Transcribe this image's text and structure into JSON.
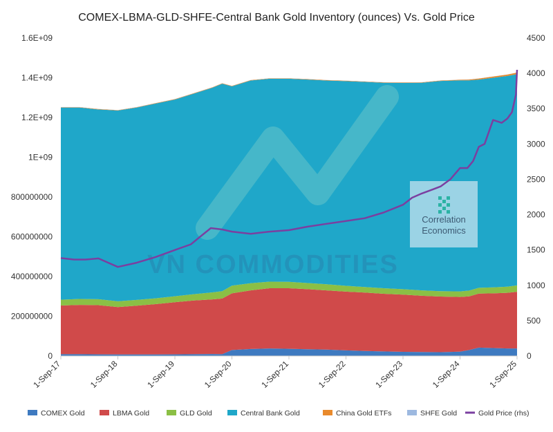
{
  "chart_data": {
    "type": "area",
    "title": "COMEX-LBMA-GLD-SHFE-Central Bank Gold Inventory (ounces) Vs. Gold Price",
    "x_tick_labels": [
      "1-Sep-17",
      "1-Sep-18",
      "1-Sep-19",
      "1-Sep-20",
      "1-Sep-21",
      "1-Sep-22",
      "1-Sep-23",
      "1-Sep-24",
      "1-Sep-25"
    ],
    "x_range_years": [
      2017.67,
      2025.67
    ],
    "y_left": {
      "ticks": [
        "0",
        "200000000",
        "400000000",
        "600000000",
        "800000000",
        "1E+09",
        "1.2E+09",
        "1.4E+09",
        "1.6E+09"
      ],
      "range": [
        0,
        1600000000
      ]
    },
    "y_right": {
      "ticks": [
        "0",
        "500",
        "1000",
        "1500",
        "2000",
        "2500",
        "3000",
        "3500",
        "4000",
        "4500"
      ],
      "range": [
        0,
        4500
      ]
    },
    "x": [
      2017.67,
      2018.0,
      2018.33,
      2018.67,
      2019.0,
      2019.33,
      2019.67,
      2020.0,
      2020.33,
      2020.5,
      2020.67,
      2021.0,
      2021.33,
      2021.67,
      2022.0,
      2022.33,
      2022.67,
      2023.0,
      2023.33,
      2023.67,
      2024.0,
      2024.33,
      2024.67,
      2024.83,
      2025.0,
      2025.25,
      2025.5,
      2025.67
    ],
    "series": [
      {
        "name": "COMEX Gold",
        "color": "#3e7ac0",
        "values": [
          9000000,
          9000000,
          8500000,
          8000000,
          8000000,
          8000000,
          8500000,
          9000000,
          10000000,
          9000000,
          30000000,
          35000000,
          38000000,
          36000000,
          34000000,
          32000000,
          28000000,
          25000000,
          23000000,
          21000000,
          20000000,
          19000000,
          22000000,
          30000000,
          42000000,
          40000000,
          38000000,
          38000000
        ]
      },
      {
        "name": "LBMA Gold",
        "color": "#d04a4a",
        "values": [
          245000000,
          248000000,
          247000000,
          238000000,
          245000000,
          253000000,
          262000000,
          270000000,
          275000000,
          280000000,
          285000000,
          295000000,
          303000000,
          305000000,
          302000000,
          298000000,
          296000000,
          294000000,
          290000000,
          288000000,
          283000000,
          280000000,
          275000000,
          270000000,
          272000000,
          275000000,
          280000000,
          285000000
        ]
      },
      {
        "name": "GLD Gold",
        "color": "#8bbf45",
        "values": [
          29000000,
          30000000,
          30000000,
          29000000,
          29000000,
          29000000,
          30000000,
          32000000,
          35000000,
          37000000,
          39000000,
          36000000,
          33000000,
          32000000,
          31000000,
          31000000,
          29000000,
          28000000,
          28000000,
          27000000,
          27000000,
          27000000,
          28000000,
          29000000,
          29000000,
          30000000,
          31000000,
          32000000
        ]
      },
      {
        "name": "Central Bank Gold",
        "color": "#1fa7c9",
        "values": [
          967000000,
          963000000,
          955000000,
          960000000,
          968000000,
          980000000,
          990000000,
          1009000000,
          1030000000,
          1044000000,
          1003000000,
          1020000000,
          1021000000,
          1022000000,
          1024000000,
          1025000000,
          1030000000,
          1032000000,
          1034000000,
          1038000000,
          1045000000,
          1058000000,
          1062000000,
          1058000000,
          1048000000,
          1055000000,
          1060000000,
          1063000000
        ]
      },
      {
        "name": "China Gold ETFs",
        "color": "#e98a2c",
        "values": [
          2000000,
          2000000,
          2000000,
          2000000,
          2000000,
          2000000,
          2000000,
          2000000,
          2000000,
          2000000,
          2000000,
          2000000,
          2000000,
          2000000,
          2000000,
          2000000,
          2000000,
          2000000,
          2000000,
          2000000,
          2000000,
          2000000,
          3000000,
          4000000,
          5000000,
          6000000,
          7000000,
          8000000
        ]
      },
      {
        "name": "SHFE Gold",
        "color": "#9db9e0",
        "values": [
          600000,
          600000,
          600000,
          600000,
          600000,
          600000,
          600000,
          600000,
          600000,
          600000,
          600000,
          600000,
          600000,
          600000,
          600000,
          600000,
          600000,
          600000,
          600000,
          600000,
          600000,
          600000,
          600000,
          600000,
          600000,
          600000,
          600000,
          600000
        ]
      }
    ],
    "line_series": {
      "name": "Gold Price (rhs)",
      "color": "#7b3fa0",
      "axis": "right",
      "x": [
        2017.67,
        2017.9,
        2018.1,
        2018.33,
        2018.67,
        2019.0,
        2019.33,
        2019.67,
        2019.95,
        2020.1,
        2020.3,
        2020.5,
        2020.67,
        2021.0,
        2021.33,
        2021.67,
        2022.0,
        2022.33,
        2022.67,
        2023.0,
        2023.33,
        2023.67,
        2023.83,
        2024.0,
        2024.2,
        2024.33,
        2024.5,
        2024.67,
        2024.8,
        2024.9,
        2025.0,
        2025.1,
        2025.25,
        2025.4,
        2025.5,
        2025.58,
        2025.65,
        2025.67
      ],
      "values": [
        1385,
        1365,
        1365,
        1380,
        1260,
        1320,
        1400,
        1500,
        1580,
        1680,
        1810,
        1790,
        1760,
        1730,
        1760,
        1780,
        1830,
        1870,
        1910,
        1950,
        2030,
        2140,
        2240,
        2300,
        2360,
        2400,
        2500,
        2660,
        2660,
        2760,
        2960,
        3000,
        3340,
        3300,
        3360,
        3450,
        3700,
        4050
      ]
    },
    "legend_position": "bottom",
    "grid": false
  },
  "watermarks": {
    "brand_text": "VN COMMODITIES",
    "logo_line1": "Correlation",
    "logo_line2": "Economics"
  },
  "colors": {
    "axis": "#c8c8c8",
    "text": "#333333",
    "logo_box": "#a8d8e8",
    "logo_text": "#3d5a73"
  }
}
